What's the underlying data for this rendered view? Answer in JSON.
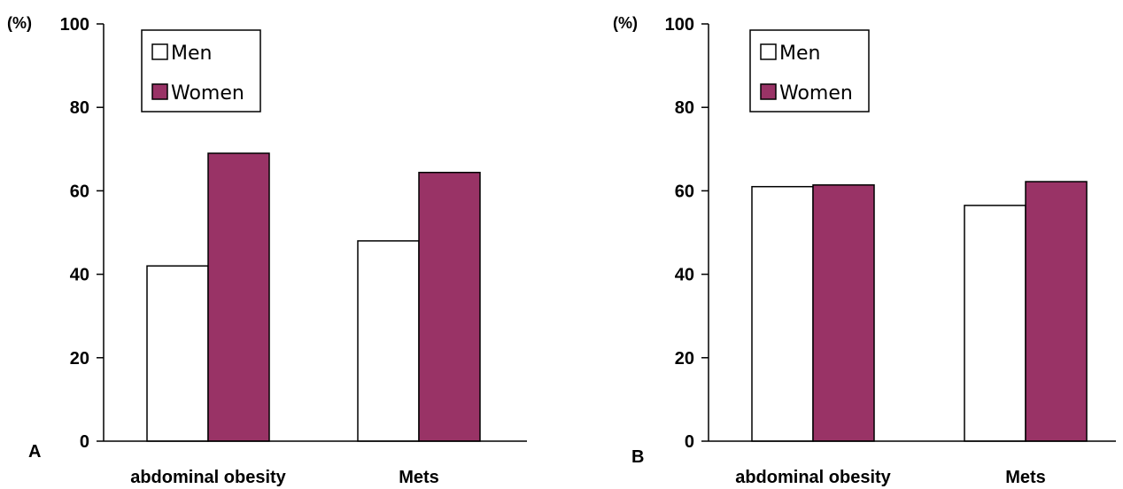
{
  "chart_data": [
    {
      "type": "bar",
      "panel_label": "A",
      "unit_label": "(%)",
      "categories": [
        "abdominal obesity",
        "Mets"
      ],
      "series": [
        {
          "name": "Men",
          "values": [
            42,
            48
          ],
          "color": "#ffffff"
        },
        {
          "name": "Women",
          "values": [
            69,
            64.4
          ],
          "color": "#993366"
        }
      ],
      "ylim": [
        0,
        100
      ],
      "yticks": [
        "0",
        "20",
        "40",
        "60",
        "80",
        "100"
      ],
      "grid": false,
      "legend_position": "top-left"
    },
    {
      "type": "bar",
      "panel_label": "B",
      "unit_label": "(%)",
      "categories": [
        "abdominal obesity",
        "Mets"
      ],
      "series": [
        {
          "name": "Men",
          "values": [
            61,
            56.5
          ],
          "color": "#ffffff"
        },
        {
          "name": "Women",
          "values": [
            61.4,
            62.2
          ],
          "color": "#993366"
        }
      ],
      "ylim": [
        0,
        100
      ],
      "yticks": [
        "0",
        "20",
        "40",
        "60",
        "80",
        "100"
      ],
      "grid": false,
      "legend_position": "top-left"
    }
  ]
}
